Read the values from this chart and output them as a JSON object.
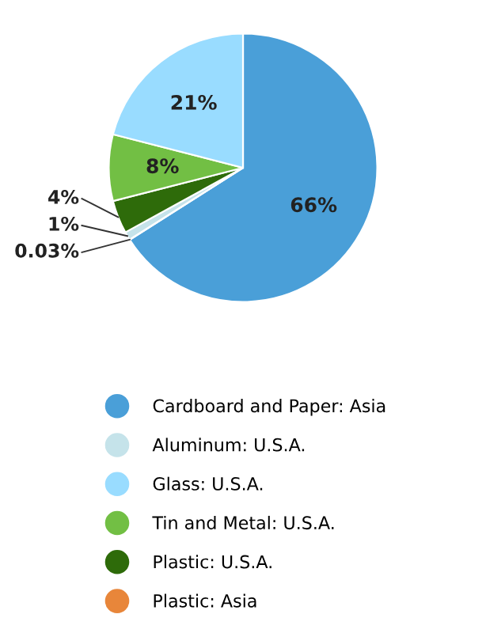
{
  "chart_data": {
    "type": "pie",
    "categories": [
      "Cardboard and Paper: Asia",
      "Plastic: Asia",
      "Aluminum: U.S.A.",
      "Plastic: U.S.A.",
      "Tin and Metal: U.S.A.",
      "Glass: U.S.A."
    ],
    "values": [
      66,
      0.03,
      1,
      4,
      8,
      21
    ],
    "colors": [
      "#4a9fd8",
      "#e8863a",
      "#c5e3ea",
      "#2e6b0a",
      "#72bf44",
      "#99dcff"
    ],
    "value_labels": [
      "66%",
      "0.03%",
      "1%",
      "4%",
      "8%",
      "21%"
    ],
    "legend": "bottom"
  }
}
